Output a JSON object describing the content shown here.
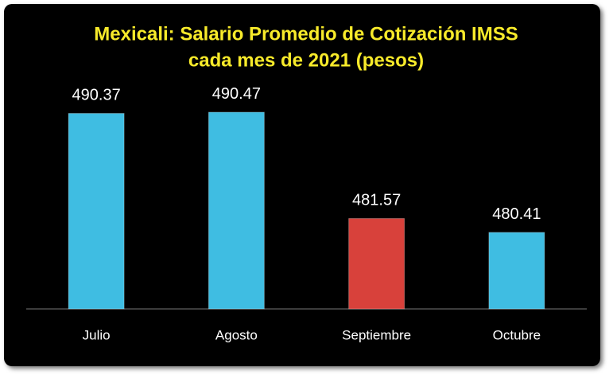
{
  "chart_data": {
    "type": "bar",
    "title": [
      "Mexicali: Salario Promedio de Cotización IMSS",
      "cada mes de 2021 (pesos)"
    ],
    "categories": [
      "Julio",
      "Agosto",
      "Septiembre",
      "Octubre"
    ],
    "values": [
      490.37,
      490.47,
      481.57,
      480.41
    ],
    "colors": [
      "#3fbde2",
      "#3fbde2",
      "#d8413b",
      "#3fbde2"
    ],
    "ylim": [
      474,
      493
    ]
  }
}
